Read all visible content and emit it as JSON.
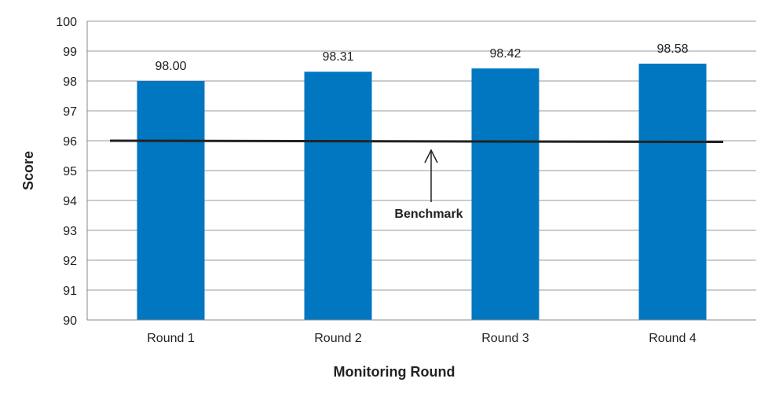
{
  "chart_data": {
    "type": "bar",
    "title": "",
    "xlabel": "Monitoring Round",
    "ylabel": "Score",
    "categories": [
      "Round 1",
      "Round 2",
      "Round 3",
      "Round 4"
    ],
    "series": [
      {
        "values": [
          98.0,
          98.31,
          98.42,
          98.58
        ],
        "color": "#0077c0"
      }
    ],
    "data_labels": [
      "98.00",
      "98.31",
      "98.42",
      "98.58"
    ],
    "ylim": [
      90,
      100
    ],
    "yticks": [
      90,
      91,
      92,
      93,
      94,
      95,
      96,
      97,
      98,
      99,
      100
    ],
    "grid": true,
    "legend": "none",
    "benchmark": {
      "value": 96,
      "label": "Benchmark",
      "color": "#222222"
    }
  }
}
